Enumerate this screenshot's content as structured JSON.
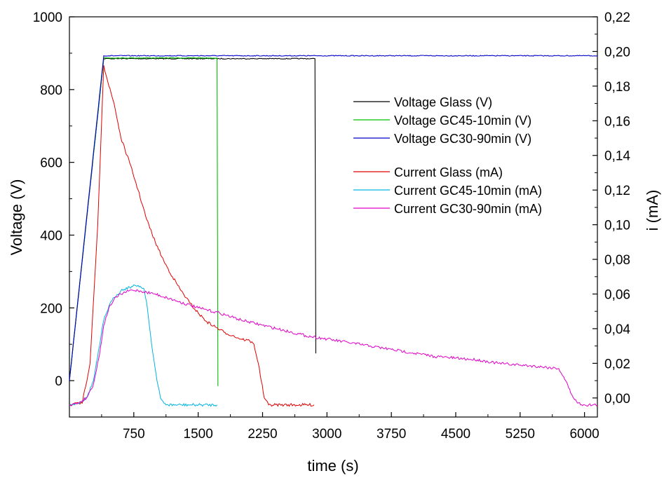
{
  "chart_data": {
    "type": "line",
    "xlabel": "time (s)",
    "ylabel": "Voltage (V)",
    "y2label": "i (mA)",
    "xlim": [
      0,
      6150
    ],
    "ylim": [
      -100,
      1000
    ],
    "y2lim": [
      -0.011,
      0.22
    ],
    "xticks": [
      750,
      1500,
      2250,
      3000,
      3750,
      4500,
      5250,
      6000
    ],
    "yticks": [
      0,
      200,
      400,
      600,
      800,
      1000
    ],
    "y2ticks": [
      0.0,
      0.02,
      0.04,
      0.06,
      0.08,
      0.1,
      0.12,
      0.14,
      0.16,
      0.18,
      0.2,
      0.22
    ],
    "y2tick_labels": [
      "0,00",
      "0,02",
      "0,04",
      "0,06",
      "0,08",
      "0,10",
      "0,12",
      "0,14",
      "0,16",
      "0,18",
      "0,20",
      "0,22"
    ],
    "grid": false,
    "legend_position": "top-right",
    "series": [
      {
        "name": "Voltage Glass (V)",
        "axis": "left",
        "color": "#000000",
        "points": [
          [
            0,
            0
          ],
          [
            400,
            885
          ],
          [
            2860,
            885
          ],
          [
            2870,
            75
          ]
        ]
      },
      {
        "name": "Voltage GC45-10min (V)",
        "axis": "left",
        "color": "#00c000",
        "points": [
          [
            0,
            0
          ],
          [
            400,
            887
          ],
          [
            1720,
            887
          ],
          [
            1730,
            -15
          ]
        ]
      },
      {
        "name": "Voltage GC30-90min (V)",
        "axis": "left",
        "color": "#0000cc",
        "points": [
          [
            0,
            0
          ],
          [
            400,
            893
          ],
          [
            6150,
            893
          ]
        ]
      },
      {
        "name": "Current Glass (mA)",
        "axis": "right",
        "color": "#e00000",
        "points": [
          [
            0,
            -0.004
          ],
          [
            150,
            -0.003
          ],
          [
            240,
            0.02
          ],
          [
            330,
            0.1
          ],
          [
            400,
            0.192
          ],
          [
            460,
            0.18
          ],
          [
            520,
            0.17
          ],
          [
            600,
            0.15
          ],
          [
            700,
            0.136
          ],
          [
            800,
            0.12
          ],
          [
            900,
            0.103
          ],
          [
            1000,
            0.09
          ],
          [
            1100,
            0.079
          ],
          [
            1200,
            0.07
          ],
          [
            1300,
            0.062
          ],
          [
            1400,
            0.055
          ],
          [
            1500,
            0.049
          ],
          [
            1600,
            0.044
          ],
          [
            1700,
            0.041
          ],
          [
            1800,
            0.038
          ],
          [
            1900,
            0.036
          ],
          [
            2000,
            0.034
          ],
          [
            2100,
            0.033
          ],
          [
            2150,
            0.031
          ],
          [
            2200,
            0.02
          ],
          [
            2270,
            0.0
          ],
          [
            2320,
            -0.004
          ],
          [
            2500,
            -0.004
          ],
          [
            2850,
            -0.004
          ]
        ]
      },
      {
        "name": "Current GC45-10min (mA)",
        "axis": "right",
        "color": "#00b4e0",
        "points": [
          [
            0,
            -0.004
          ],
          [
            100,
            -0.003
          ],
          [
            200,
            0.0
          ],
          [
            280,
            0.01
          ],
          [
            350,
            0.03
          ],
          [
            400,
            0.045
          ],
          [
            460,
            0.053
          ],
          [
            520,
            0.058
          ],
          [
            600,
            0.062
          ],
          [
            700,
            0.064
          ],
          [
            800,
            0.065
          ],
          [
            870,
            0.063
          ],
          [
            900,
            0.055
          ],
          [
            960,
            0.03
          ],
          [
            1020,
            0.01
          ],
          [
            1060,
            0.0
          ],
          [
            1100,
            -0.003
          ],
          [
            1150,
            -0.004
          ],
          [
            1720,
            -0.004
          ]
        ]
      },
      {
        "name": "Current GC30-90min (mA)",
        "axis": "right",
        "color": "#e000c8",
        "points": [
          [
            0,
            -0.004
          ],
          [
            100,
            -0.003
          ],
          [
            200,
            0.0
          ],
          [
            280,
            0.008
          ],
          [
            350,
            0.025
          ],
          [
            400,
            0.042
          ],
          [
            460,
            0.052
          ],
          [
            520,
            0.057
          ],
          [
            600,
            0.06
          ],
          [
            700,
            0.062
          ],
          [
            800,
            0.062
          ],
          [
            900,
            0.061
          ],
          [
            1000,
            0.06
          ],
          [
            1250,
            0.056
          ],
          [
            1500,
            0.052
          ],
          [
            1750,
            0.049
          ],
          [
            2000,
            0.045
          ],
          [
            2250,
            0.042
          ],
          [
            2500,
            0.039
          ],
          [
            2750,
            0.036
          ],
          [
            3000,
            0.034
          ],
          [
            3250,
            0.032
          ],
          [
            3500,
            0.03
          ],
          [
            3750,
            0.028
          ],
          [
            4000,
            0.026
          ],
          [
            4250,
            0.024
          ],
          [
            4500,
            0.023
          ],
          [
            4750,
            0.022
          ],
          [
            5000,
            0.02
          ],
          [
            5250,
            0.019
          ],
          [
            5500,
            0.018
          ],
          [
            5700,
            0.017
          ],
          [
            5780,
            0.01
          ],
          [
            5850,
            0.002
          ],
          [
            5920,
            -0.003
          ],
          [
            6000,
            -0.004
          ],
          [
            6150,
            -0.004
          ]
        ]
      }
    ]
  }
}
